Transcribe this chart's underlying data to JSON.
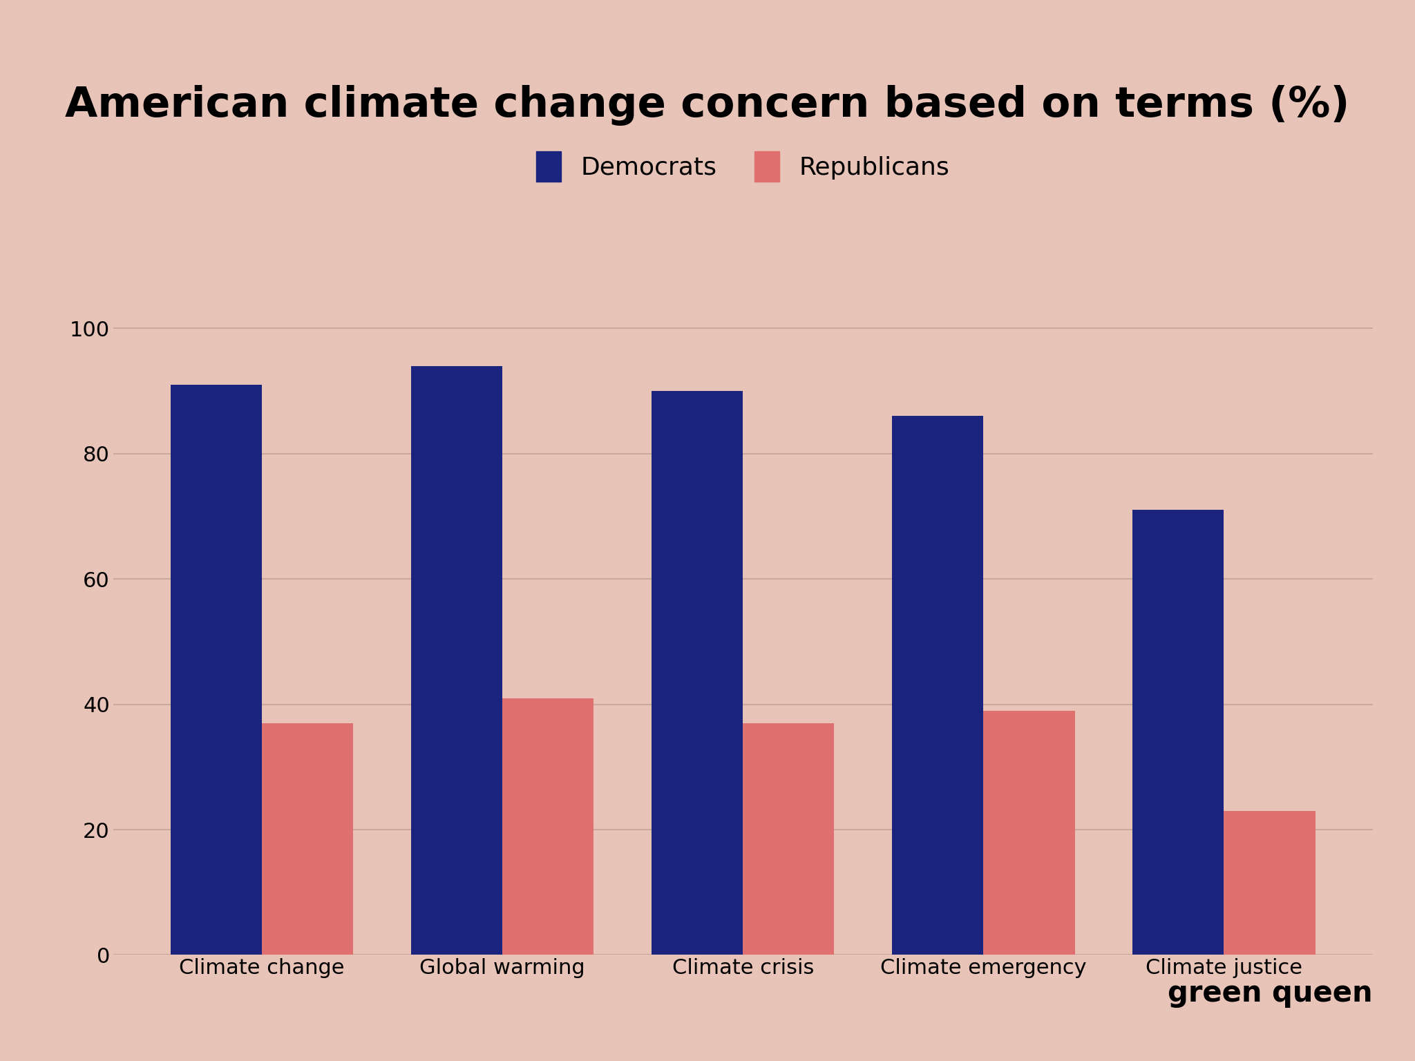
{
  "title": "American climate change concern based on terms (%)",
  "categories": [
    "Climate change",
    "Global warming",
    "Climate crisis",
    "Climate emergency",
    "Climate justice"
  ],
  "democrats": [
    91,
    94,
    90,
    86,
    71
  ],
  "republicans": [
    37,
    41,
    37,
    39,
    23
  ],
  "democrat_color": "#1a237e",
  "republican_color": "#e07070",
  "background_color": "#e8c4b8",
  "title_fontsize": 44,
  "legend_fontsize": 26,
  "tick_fontsize": 22,
  "watermark": "green queen",
  "watermark_fontsize": 30,
  "ylim": [
    0,
    105
  ],
  "yticks": [
    0,
    20,
    40,
    60,
    80,
    100
  ],
  "bar_width": 0.38,
  "grid_color": "#c9a99a",
  "legend_labels": [
    "Democrats",
    "Republicans"
  ]
}
